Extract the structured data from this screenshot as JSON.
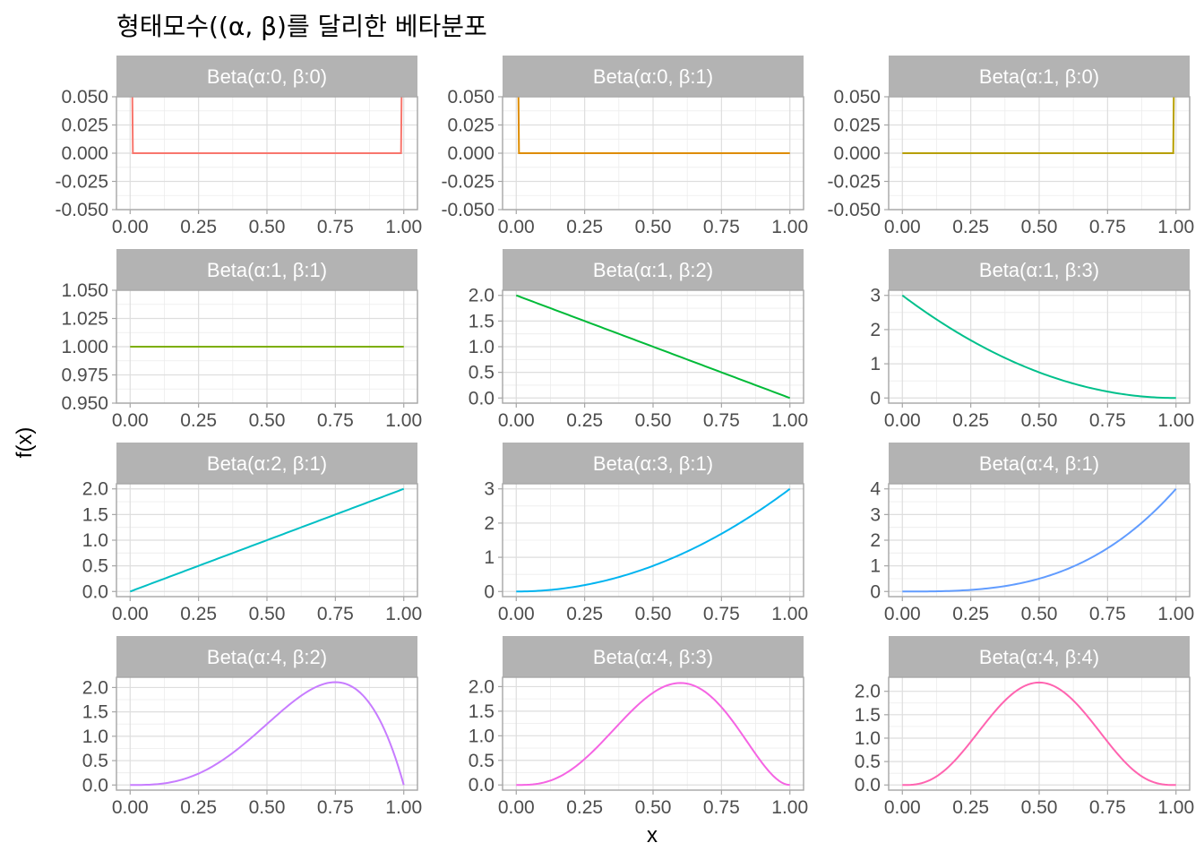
{
  "chart_data": {
    "type": "line",
    "title": "형태모수((α, β)를 달리한 베타분포",
    "xlabel": "x",
    "ylabel": "f(x)",
    "grid": true,
    "layout": "facet-wrap 4 rows x 3 columns, independent y scales",
    "x_ticks": [
      "0.00",
      "0.25",
      "0.50",
      "0.75",
      "1.00"
    ],
    "x_range": [
      0,
      1
    ],
    "panels": [
      {
        "label": "Beta(α:0, β:0)",
        "alpha": 0,
        "beta": 0,
        "color": "#F8766D",
        "ylim": [
          -0.05,
          0.05
        ],
        "yticks": [
          -0.05,
          -0.025,
          0,
          0.025,
          0.05
        ],
        "ytick_labels": [
          "-0.050",
          "-0.025",
          "0.000",
          "0.025",
          "0.050"
        ]
      },
      {
        "label": "Beta(α:0, β:1)",
        "alpha": 0,
        "beta": 1,
        "color": "#DE8C00",
        "ylim": [
          -0.05,
          0.05
        ],
        "yticks": [
          -0.05,
          -0.025,
          0,
          0.025,
          0.05
        ],
        "ytick_labels": [
          "-0.050",
          "-0.025",
          "0.000",
          "0.025",
          "0.050"
        ]
      },
      {
        "label": "Beta(α:1, β:0)",
        "alpha": 1,
        "beta": 0,
        "color": "#B79F00",
        "ylim": [
          -0.05,
          0.05
        ],
        "yticks": [
          -0.05,
          -0.025,
          0,
          0.025,
          0.05
        ],
        "ytick_labels": [
          "-0.050",
          "-0.025",
          "0.000",
          "0.025",
          "0.050"
        ]
      },
      {
        "label": "Beta(α:1, β:1)",
        "alpha": 1,
        "beta": 1,
        "color": "#7CAE00",
        "ylim": [
          0.95,
          1.05
        ],
        "yticks": [
          0.95,
          0.975,
          1,
          1.025,
          1.05
        ],
        "ytick_labels": [
          "0.950",
          "0.975",
          "1.000",
          "1.025",
          "1.050"
        ]
      },
      {
        "label": "Beta(α:1, β:2)",
        "alpha": 1,
        "beta": 2,
        "color": "#00BA38",
        "ylim": [
          -0.1,
          2.1
        ],
        "yticks": [
          0,
          0.5,
          1,
          1.5,
          2
        ],
        "ytick_labels": [
          "0.0",
          "0.5",
          "1.0",
          "1.5",
          "2.0"
        ]
      },
      {
        "label": "Beta(α:1, β:3)",
        "alpha": 1,
        "beta": 3,
        "color": "#00C08B",
        "ylim": [
          -0.15,
          3.15
        ],
        "yticks": [
          0,
          1,
          2,
          3
        ],
        "ytick_labels": [
          "0",
          "1",
          "2",
          "3"
        ]
      },
      {
        "label": "Beta(α:2, β:1)",
        "alpha": 2,
        "beta": 1,
        "color": "#00BFC4",
        "ylim": [
          -0.1,
          2.1
        ],
        "yticks": [
          0,
          0.5,
          1,
          1.5,
          2
        ],
        "ytick_labels": [
          "0.0",
          "0.5",
          "1.0",
          "1.5",
          "2.0"
        ]
      },
      {
        "label": "Beta(α:3, β:1)",
        "alpha": 3,
        "beta": 1,
        "color": "#00B4F0",
        "ylim": [
          -0.15,
          3.15
        ],
        "yticks": [
          0,
          1,
          2,
          3
        ],
        "ytick_labels": [
          "0",
          "1",
          "2",
          "3"
        ]
      },
      {
        "label": "Beta(α:4, β:1)",
        "alpha": 4,
        "beta": 1,
        "color": "#619CFF",
        "ylim": [
          -0.2,
          4.2
        ],
        "yticks": [
          0,
          1,
          2,
          3,
          4
        ],
        "ytick_labels": [
          "0",
          "1",
          "2",
          "3",
          "4"
        ]
      },
      {
        "label": "Beta(α:4, β:2)",
        "alpha": 4,
        "beta": 2,
        "color": "#C77CFF",
        "ylim": [
          -0.105,
          2.21
        ],
        "yticks": [
          0,
          0.5,
          1,
          1.5,
          2
        ],
        "ytick_labels": [
          "0.0",
          "0.5",
          "1.0",
          "1.5",
          "2.0"
        ]
      },
      {
        "label": "Beta(α:4, β:3)",
        "alpha": 4,
        "beta": 3,
        "color": "#F564E3",
        "ylim": [
          -0.105,
          2.19
        ],
        "yticks": [
          0,
          0.5,
          1,
          1.5,
          2
        ],
        "ytick_labels": [
          "0.0",
          "0.5",
          "1.0",
          "1.5",
          "2.0"
        ]
      },
      {
        "label": "Beta(α:4, β:4)",
        "alpha": 4,
        "beta": 4,
        "color": "#FF64B0",
        "ylim": [
          -0.11,
          2.3
        ],
        "yticks": [
          0,
          0.5,
          1,
          1.5,
          2
        ],
        "ytick_labels": [
          "0.0",
          "0.5",
          "1.0",
          "1.5",
          "2.0"
        ]
      }
    ]
  }
}
